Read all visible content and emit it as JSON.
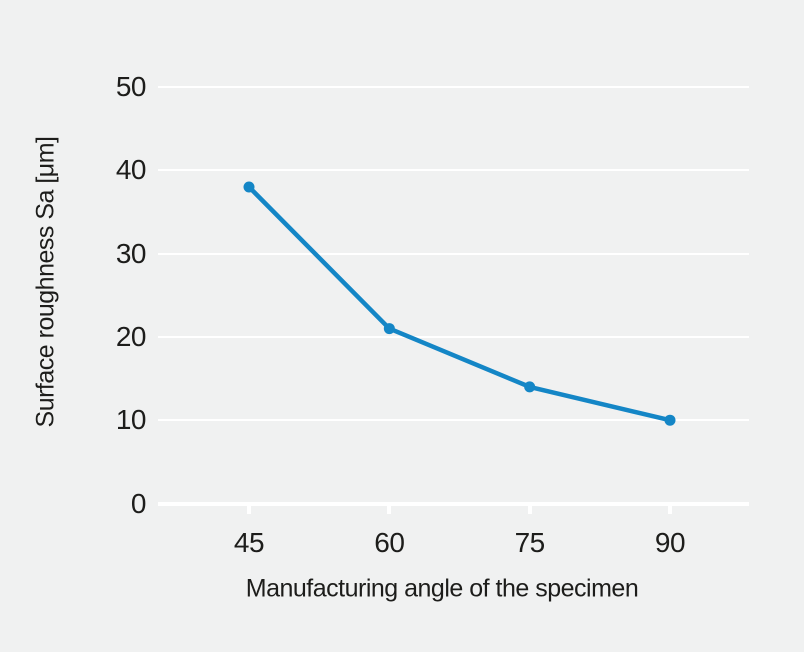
{
  "colors": {
    "background": "#f0f1f1",
    "grid": "#ffffff",
    "text": "#1d1d1b",
    "line": "#1486c6"
  },
  "chart_data": {
    "type": "line",
    "title": "",
    "xlabel": "Manufacturing angle of the specimen",
    "ylabel": "Surface roughness Sa [μm]",
    "x": [
      45,
      60,
      75,
      90
    ],
    "values": [
      38,
      21,
      14,
      10
    ],
    "x_tick_labels": [
      "45",
      "60",
      "75",
      "90"
    ],
    "y_ticks": [
      0,
      10,
      20,
      30,
      40,
      50
    ],
    "y_tick_labels": [
      "0",
      "10",
      "20",
      "30",
      "40",
      "50"
    ],
    "ylim": [
      0,
      50
    ],
    "grid": "horizontal",
    "legend": false,
    "marker": "circle"
  }
}
